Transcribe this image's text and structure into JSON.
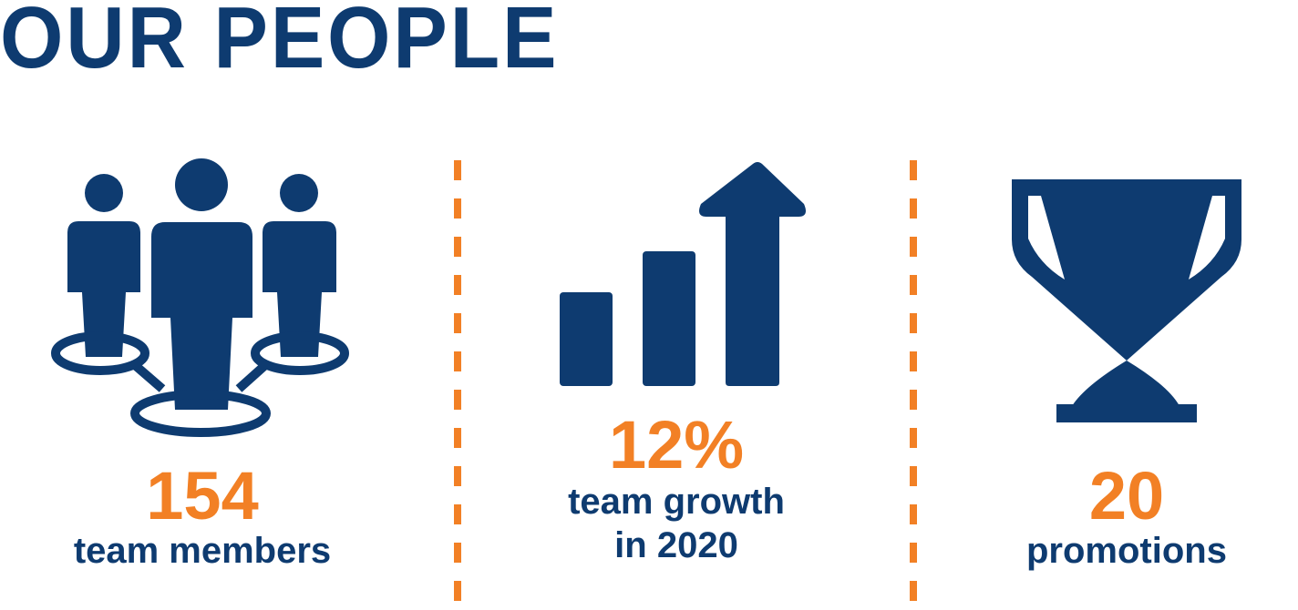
{
  "title": "OUR PEOPLE",
  "colors": {
    "navy": "#0e3b70",
    "orange": "#f28025"
  },
  "stats": [
    {
      "icon": "team-icon",
      "value": "154",
      "caption_lines": [
        "team members"
      ]
    },
    {
      "icon": "growth-chart-icon",
      "value": "12%",
      "caption_lines": [
        "team growth",
        "in 2020"
      ]
    },
    {
      "icon": "trophy-icon",
      "value": "20",
      "caption_lines": [
        "promotions"
      ]
    }
  ]
}
